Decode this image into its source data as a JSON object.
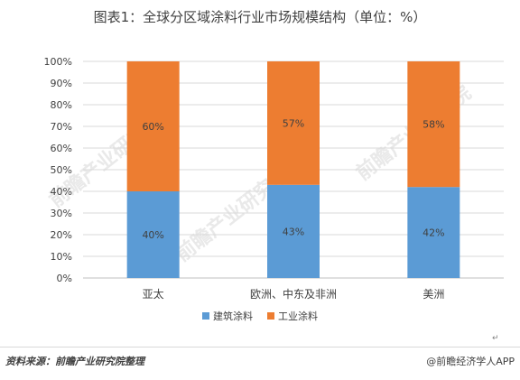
{
  "title": "图表1：全球分区域涂料行业市场规模结构（单位：%）",
  "footer": {
    "source": "资料来源：前瞻产业研究院整理",
    "credit": "@前瞻经济学人APP"
  },
  "watermark_text": "前瞻产业研究院",
  "colors": {
    "building": "#5b9bd5",
    "industrial": "#ed7d31",
    "grid": "#d9d9d9",
    "axis": "#bfbfbf"
  },
  "chart_data": {
    "type": "bar",
    "stacked": true,
    "title": "图表1：全球分区域涂料行业市场规模结构（单位：%）",
    "categories": [
      "亚太",
      "欧洲、中东及非洲",
      "美洲"
    ],
    "series": [
      {
        "name": "建筑涂料",
        "values": [
          40,
          43,
          42
        ],
        "labels": [
          "40%",
          "43%",
          "42%"
        ],
        "color": "#5b9bd5"
      },
      {
        "name": "工业涂料",
        "values": [
          60,
          57,
          58
        ],
        "labels": [
          "60%",
          "57%",
          "58%"
        ],
        "color": "#ed7d31"
      }
    ],
    "ylim": [
      0,
      100
    ],
    "yticks": [
      "0%",
      "10%",
      "20%",
      "30%",
      "40%",
      "50%",
      "60%",
      "70%",
      "80%",
      "90%",
      "100%"
    ],
    "grid": true,
    "legend_position": "bottom"
  }
}
